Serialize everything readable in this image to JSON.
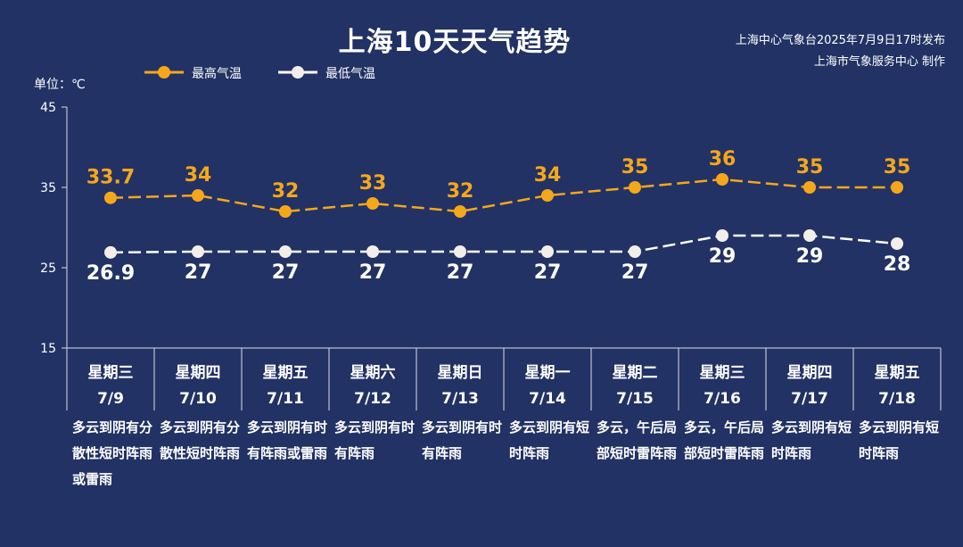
{
  "title": "上海10天天气趋势",
  "source": {
    "line1": "上海中心气象台2025年7月9日17时发布",
    "line2": "上海市气象服务中心 制作"
  },
  "colors": {
    "background": "#223264",
    "high": "#F5A71C",
    "low": "#FFFFFF"
  },
  "chart_data": {
    "type": "line",
    "unit_label": "单位：℃",
    "yticks": [
      45,
      35,
      25,
      15
    ],
    "ylim": [
      15,
      45
    ],
    "grid": false,
    "legend_position": "top-left",
    "categories": [
      {
        "weekday": "星期三",
        "date": "7/9",
        "weather": "多云到阴有分散性短时阵雨或雷雨"
      },
      {
        "weekday": "星期四",
        "date": "7/10",
        "weather": "多云到阴有分散性短时阵雨"
      },
      {
        "weekday": "星期五",
        "date": "7/11",
        "weather": "多云到阴有时有阵雨或雷雨"
      },
      {
        "weekday": "星期六",
        "date": "7/12",
        "weather": "多云到阴有时有阵雨"
      },
      {
        "weekday": "星期日",
        "date": "7/13",
        "weather": "多云到阴有时有阵雨"
      },
      {
        "weekday": "星期一",
        "date": "7/14",
        "weather": "多云到阴有短时阵雨"
      },
      {
        "weekday": "星期二",
        "date": "7/15",
        "weather": "多云，午后局部短时雷阵雨"
      },
      {
        "weekday": "星期三",
        "date": "7/16",
        "weather": "多云，午后局部短时雷阵雨"
      },
      {
        "weekday": "星期四",
        "date": "7/17",
        "weather": "多云到阴有短时阵雨"
      },
      {
        "weekday": "星期五",
        "date": "7/18",
        "weather": "多云到阴有短时阵雨"
      }
    ],
    "series": [
      {
        "name": "最高气温",
        "values": [
          33.7,
          34,
          32,
          33,
          32,
          34,
          35,
          36,
          35,
          35
        ],
        "labels": [
          "33.7",
          "34",
          "32",
          "33",
          "32",
          "34",
          "35",
          "36",
          "35",
          "35"
        ]
      },
      {
        "name": "最低气温",
        "values": [
          26.9,
          27,
          27,
          27,
          27,
          27,
          27,
          29,
          29,
          28
        ],
        "labels": [
          "26.9",
          "27",
          "27",
          "27",
          "27",
          "27",
          "27",
          "29",
          "29",
          "28"
        ]
      }
    ]
  }
}
